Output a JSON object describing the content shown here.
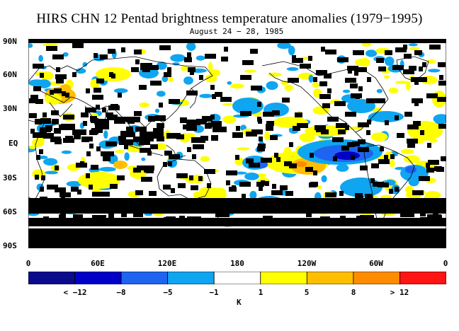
{
  "title": "HIRS CHN 12 Pentad brightness temperature anomalies (1979−1995)",
  "subtitle": "August 24 − 28, 1985",
  "lat_labels": [
    "90N",
    "60N",
    "30N",
    "EQ",
    "30S",
    "60S",
    "90S"
  ],
  "lon_labels": [
    "0",
    "60E",
    "120E",
    "180",
    "120W",
    "60W",
    "0"
  ],
  "colorbar": {
    "unit": "K",
    "labels": [
      "< −12",
      "−8",
      "−5",
      "−1",
      "1",
      "5",
      "8",
      "> 12"
    ],
    "colors": [
      "#0a0a8c",
      "#0000c8",
      "#1e64f0",
      "#0fa5f0",
      "#ffffff",
      "#ffff00",
      "#ffbe00",
      "#ff8c00",
      "#ff1414"
    ]
  },
  "map_colors": {
    "nodata": "#000000",
    "coast": "#000000"
  }
}
